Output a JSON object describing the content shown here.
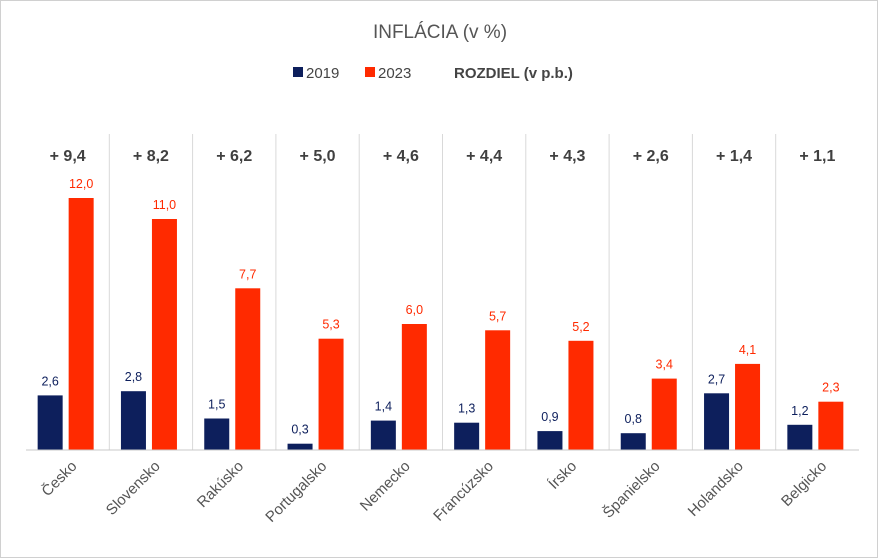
{
  "chart_data": {
    "type": "bar",
    "title": "INFLÁCIA (v %)",
    "categories": [
      "Česko",
      "Slovensko",
      "Rakúsko",
      "Portugalsko",
      "Nemecko",
      "Francúzsko",
      "Írsko",
      "Španielsko",
      "Holandsko",
      "Belgicko"
    ],
    "series": [
      {
        "name": "2019",
        "color": "#0d1f5c",
        "values": [
          2.6,
          2.8,
          1.5,
          0.3,
          1.4,
          1.3,
          0.9,
          0.8,
          2.7,
          1.2
        ],
        "labels": [
          "2,6",
          "2,8",
          "1,5",
          "0,3",
          "1,4",
          "1,3",
          "0,9",
          "0,8",
          "2,7",
          "1,2"
        ]
      },
      {
        "name": "2023",
        "color": "#ff2a00",
        "values": [
          12.0,
          11.0,
          7.7,
          5.3,
          6.0,
          5.7,
          5.2,
          3.4,
          4.1,
          2.3
        ],
        "labels": [
          "12,0",
          "11,0",
          "7,7",
          "5,3",
          "6,0",
          "5,7",
          "5,2",
          "3,4",
          "4,1",
          "2,3"
        ]
      }
    ],
    "difference": {
      "legend_label": "ROZDIEL (v p.b.)",
      "values": [
        9.4,
        8.2,
        6.2,
        5.0,
        4.6,
        4.4,
        4.3,
        2.6,
        1.4,
        1.1
      ],
      "labels": [
        "+ 9,4",
        "+ 8,2",
        "+ 6,2",
        "+ 5,0",
        "+ 4,6",
        "+ 4,4",
        "+ 4,3",
        "+ 2,6",
        "+ 1,4",
        "+ 1,1"
      ]
    },
    "ylim": [
      0,
      12
    ],
    "grid": false,
    "legend_position": "top-center"
  }
}
